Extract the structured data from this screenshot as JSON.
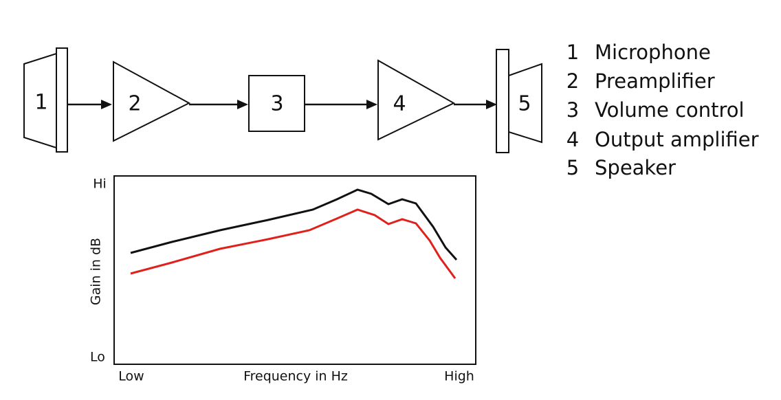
{
  "diagram": {
    "blocks": [
      {
        "label": "1"
      },
      {
        "label": "2"
      },
      {
        "label": "3"
      },
      {
        "label": "4"
      },
      {
        "label": "5"
      }
    ],
    "legend": [
      {
        "number": "1",
        "label": "Microphone"
      },
      {
        "number": "2",
        "label": "Preamplifier"
      },
      {
        "number": "3",
        "label": "Volume control"
      },
      {
        "number": "4",
        "label": "Output amplifier"
      },
      {
        "number": "5",
        "label": "Speaker"
      }
    ]
  },
  "graph": {
    "y_axis": {
      "label": "Gain in dB",
      "high": "Hi",
      "low": "Lo"
    },
    "x_axis": {
      "label": "Frequency in Hz",
      "low": "Low",
      "high": "High"
    }
  }
}
